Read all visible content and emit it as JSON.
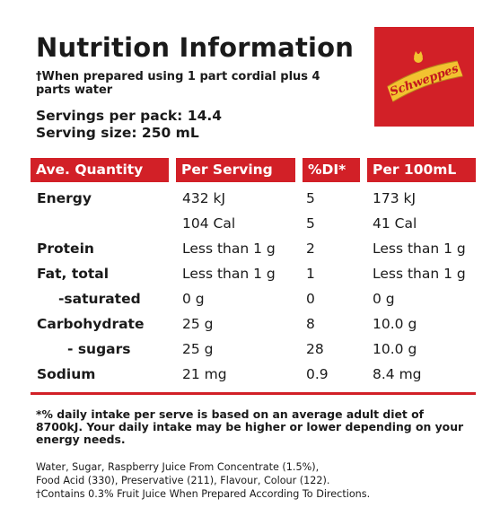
{
  "title": "Nutrition Information",
  "prepared_note": "†When prepared using 1 part cordial plus 4 parts water",
  "servings_per_pack": "Servings per pack: 14.4",
  "serving_size": "Serving size: 250 mL",
  "logo": {
    "text": "Schweppes",
    "icon": "schweppes-logo",
    "background": "#d22027",
    "banner": "#f2c230"
  },
  "colors": {
    "accent_red": "#d22027",
    "text": "#1a1a1a"
  },
  "table": {
    "headers": [
      "Ave. Quantity",
      "Per Serving",
      "%DI*",
      "Per 100mL"
    ],
    "rows": [
      {
        "label": "Energy",
        "per_serving": "432 kJ",
        "di": "5",
        "per_100ml": "173 kJ"
      },
      {
        "label": "",
        "per_serving": "104 Cal",
        "di": "5",
        "per_100ml": "41 Cal"
      },
      {
        "label": "Protein",
        "per_serving": "Less than 1 g",
        "di": "2",
        "per_100ml": "Less than 1 g"
      },
      {
        "label": "Fat, total",
        "per_serving": "Less than 1 g",
        "di": "1",
        "per_100ml": "Less than 1 g"
      },
      {
        "label": "-saturated",
        "per_serving": "0 g",
        "di": "0",
        "per_100ml": "0 g"
      },
      {
        "label": "Carbohydrate",
        "per_serving": "25 g",
        "di": "8",
        "per_100ml": "10.0 g"
      },
      {
        "label": "- sugars",
        "per_serving": "25 g",
        "di": "28",
        "per_100ml": "10.0 g"
      },
      {
        "label": "Sodium",
        "per_serving": "21 mg",
        "di": "0.9",
        "per_100ml": "8.4 mg"
      }
    ]
  },
  "footnote": "*% daily intake per serve is based on an average adult diet of 8700kJ. Your daily intake may be higher or lower depending on your energy needs.",
  "ingredients": {
    "line1": "Water, Sugar, Raspberry Juice From Concentrate (1.5%),",
    "line2": "Food Acid (330), Preservative (211), Flavour, Colour (122).",
    "line3": "†Contains 0.3% Fruit Juice When Prepared According To Directions."
  }
}
